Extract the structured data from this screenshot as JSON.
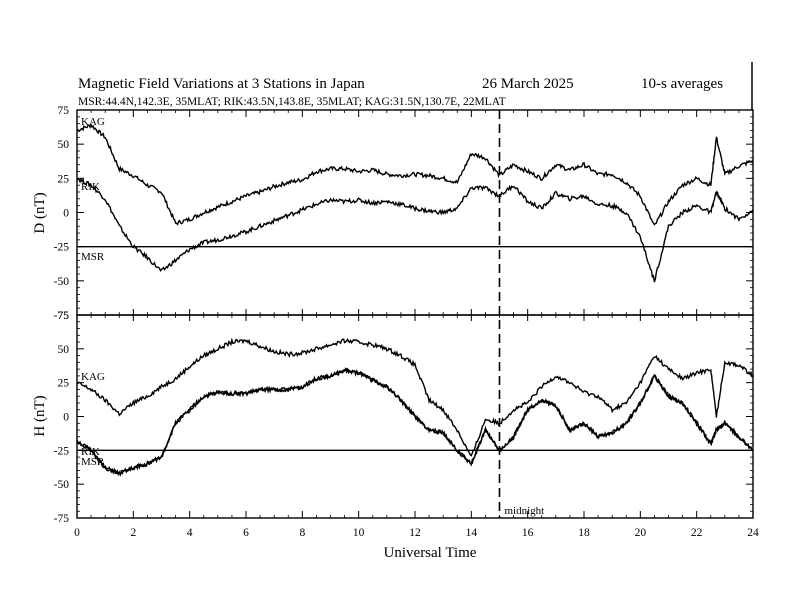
{
  "title": {
    "main": "Magnetic Field Variations at 3 Stations in Japan",
    "date": "26 March   2025",
    "avg": "10-s averages",
    "stations_line": "MSR:44.4N,142.3E, 35MLAT;  RIK:43.5N,143.8E, 35MLAT;  KAG:31.5N,130.7E, 22MLAT"
  },
  "xaxis": {
    "label": "Universal Time",
    "range": [
      0,
      24
    ],
    "ticks": [
      "0",
      "2",
      "4",
      "6",
      "8",
      "10",
      "12",
      "14",
      "16",
      "18",
      "20",
      "22",
      "24"
    ]
  },
  "midnight": {
    "label": "midnight",
    "ut": 15
  },
  "chart_data": [
    {
      "type": "line",
      "panel": "D",
      "ylabel": "D (nT)",
      "ylim": [
        -75,
        75
      ],
      "yticks": [
        "75",
        "50",
        "25",
        "0",
        "-25",
        "-50",
        "-75"
      ],
      "baseline": -25,
      "station_labels": [
        "KAG",
        "RIK",
        "MSR"
      ],
      "series": [
        {
          "name": "KAG",
          "x": [
            0,
            0.5,
            1,
            1.5,
            2,
            2.5,
            3,
            3.5,
            4,
            4.5,
            5,
            5.5,
            6,
            6.5,
            7,
            7.5,
            8,
            8.5,
            9,
            9.5,
            10,
            10.5,
            11,
            11.5,
            12,
            12.5,
            13,
            13.5,
            14,
            14.5,
            15,
            15.5,
            16,
            16.5,
            17,
            17.5,
            18,
            18.5,
            19,
            19.5,
            20,
            20.5,
            21,
            21.5,
            22,
            22.5,
            22.7,
            23,
            23.5,
            24
          ],
          "y": [
            60,
            64,
            55,
            32,
            27,
            20,
            15,
            -8,
            -5,
            0,
            4,
            8,
            12,
            15,
            19,
            22,
            24,
            30,
            32,
            32,
            30,
            31,
            28,
            27,
            28,
            27,
            25,
            22,
            43,
            40,
            27,
            35,
            30,
            25,
            35,
            31,
            35,
            28,
            28,
            22,
            12,
            -10,
            8,
            20,
            25,
            20,
            55,
            28,
            34,
            38
          ]
        },
        {
          "name": "RIK",
          "x": [
            0,
            0.5,
            1,
            1.5,
            2,
            2.5,
            3,
            3.5,
            4,
            4.5,
            5,
            5.5,
            6,
            6.5,
            7,
            7.5,
            8,
            8.5,
            9,
            9.5,
            10,
            10.5,
            11,
            11.5,
            12,
            12.5,
            13,
            13.5,
            14,
            14.5,
            15,
            15.5,
            16,
            16.5,
            17,
            17.5,
            18,
            18.5,
            19,
            19.5,
            20,
            20.5,
            21,
            21.5,
            22,
            22.5,
            22.7,
            23,
            23.5,
            24
          ],
          "y": [
            25,
            20,
            10,
            -10,
            -25,
            -33,
            -43,
            -35,
            -27,
            -22,
            -20,
            -17,
            -14,
            -10,
            -6,
            -2,
            2,
            6,
            9,
            8,
            9,
            7,
            8,
            6,
            3,
            1,
            0,
            3,
            18,
            18,
            12,
            20,
            8,
            3,
            14,
            10,
            12,
            6,
            5,
            0,
            -18,
            -50,
            -10,
            0,
            5,
            0,
            15,
            3,
            -5,
            2
          ]
        }
      ]
    },
    {
      "type": "line",
      "panel": "H",
      "ylabel": "H (nT)",
      "ylim": [
        -75,
        75
      ],
      "yticks": [
        "75",
        "50",
        "25",
        "0",
        "-25",
        "-50",
        "-75"
      ],
      "baseline": -25,
      "station_labels": [
        "KAG",
        "RIK",
        "MSR"
      ],
      "series": [
        {
          "name": "KAG",
          "x": [
            0,
            0.5,
            1,
            1.5,
            2,
            2.5,
            3,
            3.5,
            4,
            4.5,
            5,
            5.5,
            6,
            6.5,
            7,
            7.5,
            8,
            8.5,
            9,
            9.5,
            10,
            10.5,
            11,
            11.5,
            12,
            12.5,
            13,
            13.5,
            14,
            14.5,
            15,
            15.5,
            16,
            16.5,
            17,
            17.5,
            18,
            18.5,
            19,
            19.5,
            20,
            20.5,
            21,
            21.5,
            22,
            22.5,
            22.7,
            23,
            23.5,
            24
          ],
          "y": [
            25,
            20,
            12,
            2,
            10,
            15,
            22,
            28,
            37,
            45,
            50,
            55,
            56,
            52,
            48,
            46,
            47,
            50,
            53,
            56,
            55,
            53,
            50,
            45,
            38,
            12,
            5,
            -10,
            -30,
            -2,
            -5,
            5,
            10,
            22,
            30,
            25,
            18,
            15,
            5,
            10,
            25,
            45,
            35,
            28,
            32,
            35,
            0,
            40,
            38,
            30
          ]
        },
        {
          "name": "RIK",
          "x": [
            0,
            0.5,
            1,
            1.5,
            2,
            2.5,
            3,
            3.5,
            4,
            4.5,
            5,
            5.5,
            6,
            6.5,
            7,
            7.5,
            8,
            8.5,
            9,
            9.5,
            10,
            10.5,
            11,
            11.5,
            12,
            12.5,
            13,
            13.5,
            14,
            14.5,
            15,
            15.5,
            16,
            16.5,
            17,
            17.5,
            18,
            18.5,
            19,
            19.5,
            20,
            20.5,
            21,
            21.5,
            22,
            22.5,
            22.7,
            23,
            23.5,
            24
          ],
          "y": [
            -18,
            -25,
            -38,
            -42,
            -38,
            -35,
            -30,
            -5,
            5,
            15,
            18,
            17,
            17,
            20,
            20,
            20,
            22,
            28,
            30,
            34,
            32,
            27,
            22,
            12,
            0,
            -10,
            -12,
            -25,
            -35,
            -10,
            -25,
            -15,
            5,
            12,
            8,
            -10,
            -5,
            -15,
            -12,
            -5,
            10,
            30,
            15,
            10,
            -5,
            -20,
            -10,
            -5,
            -15,
            -25
          ]
        },
        {
          "name": "MSR",
          "x": [
            0,
            0.5,
            1,
            1.5,
            2,
            2.5,
            3,
            3.5,
            4,
            4.5,
            5,
            5.5,
            6,
            6.5,
            7,
            7.5,
            8,
            8.5,
            9,
            9.5,
            10,
            10.5,
            11,
            11.5,
            12,
            12.5,
            13,
            13.5,
            14,
            14.5,
            15,
            15.5,
            16,
            16.5,
            17,
            17.5,
            18,
            18.5,
            19,
            19.5,
            20,
            20.5,
            21,
            21.5,
            22,
            22.5,
            22.7,
            23,
            23.5,
            24
          ],
          "y": [
            -18,
            -25,
            -38,
            -42,
            -38,
            -35,
            -30,
            -5,
            5,
            15,
            18,
            17,
            17,
            20,
            20,
            20,
            22,
            28,
            30,
            34,
            32,
            27,
            22,
            12,
            0,
            -10,
            -12,
            -25,
            -35,
            -10,
            -25,
            -15,
            5,
            12,
            8,
            -10,
            -5,
            -15,
            -12,
            -5,
            10,
            30,
            15,
            10,
            -5,
            -20,
            -10,
            -5,
            -15,
            -25
          ]
        }
      ]
    }
  ]
}
